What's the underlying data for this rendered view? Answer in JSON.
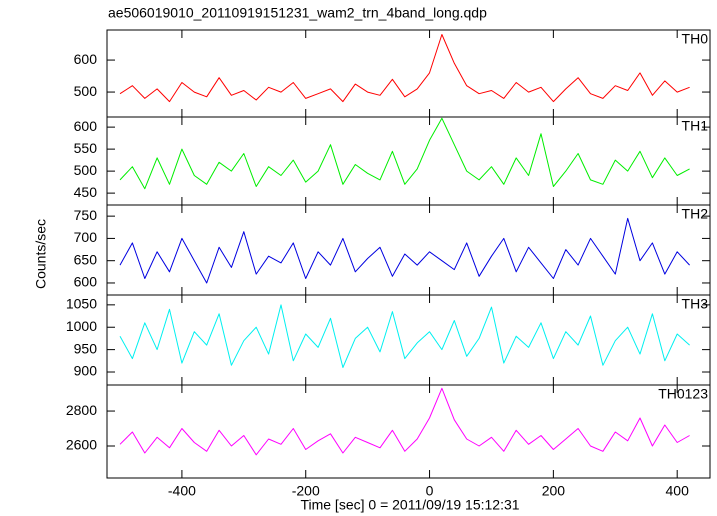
{
  "chart_data": {
    "type": "line",
    "title": "ae506019010_20110919151231_wam2_trn_4band_long.qdp",
    "x_label": "Time [sec] 0 = 2011/09/19 15:12:31",
    "y_label": "Counts/sec",
    "x": [
      -500,
      -480,
      -460,
      -440,
      -420,
      -400,
      -380,
      -360,
      -340,
      -320,
      -300,
      -280,
      -260,
      -240,
      -220,
      -200,
      -180,
      -160,
      -140,
      -120,
      -100,
      -80,
      -60,
      -40,
      -20,
      0,
      20,
      40,
      60,
      80,
      100,
      120,
      140,
      160,
      180,
      200,
      220,
      240,
      260,
      280,
      300,
      320,
      340,
      360,
      380,
      400,
      420
    ],
    "xlim": [
      -521,
      453
    ],
    "xticks": [
      -400,
      -200,
      0,
      200,
      400
    ],
    "panels": [
      {
        "label": "TH0",
        "color": "#ff0000",
        "ylim": [
          422,
          694
        ],
        "yticks": [
          500,
          600
        ],
        "values": [
          495,
          520,
          480,
          510,
          470,
          530,
          500,
          485,
          545,
          490,
          505,
          475,
          515,
          500,
          530,
          480,
          495,
          510,
          470,
          525,
          500,
          490,
          540,
          485,
          510,
          560,
          680,
          590,
          520,
          495,
          505,
          480,
          530,
          500,
          515,
          470,
          510,
          545,
          495,
          480,
          520,
          505,
          560,
          490,
          535,
          500,
          515
        ]
      },
      {
        "label": "TH1",
        "color": "#00ee00",
        "ylim": [
          423,
          623
        ],
        "yticks": [
          450,
          500,
          550,
          600
        ],
        "values": [
          480,
          510,
          460,
          530,
          470,
          550,
          490,
          470,
          520,
          500,
          540,
          465,
          510,
          490,
          525,
          475,
          500,
          560,
          470,
          515,
          495,
          480,
          545,
          470,
          505,
          570,
          620,
          560,
          500,
          480,
          510,
          470,
          530,
          490,
          585,
          465,
          500,
          540,
          480,
          470,
          525,
          500,
          545,
          485,
          530,
          490,
          505
        ]
      },
      {
        "label": "TH2",
        "color": "#0000e0",
        "ylim": [
          573,
          775
        ],
        "yticks": [
          600,
          650,
          700,
          750
        ],
        "values": [
          640,
          690,
          610,
          670,
          625,
          700,
          650,
          600,
          680,
          635,
          715,
          620,
          660,
          645,
          690,
          610,
          670,
          640,
          700,
          625,
          655,
          680,
          615,
          665,
          640,
          670,
          650,
          630,
          690,
          615,
          660,
          700,
          625,
          680,
          645,
          610,
          675,
          640,
          700,
          660,
          620,
          745,
          650,
          690,
          620,
          670,
          640
        ]
      },
      {
        "label": "TH3",
        "color": "#00f0f0",
        "ylim": [
          871,
          1072
        ],
        "yticks": [
          900,
          950,
          1000,
          1050
        ],
        "values": [
          980,
          930,
          1010,
          950,
          1040,
          920,
          990,
          960,
          1030,
          915,
          970,
          1000,
          940,
          1050,
          925,
          985,
          955,
          1020,
          910,
          975,
          1000,
          945,
          1035,
          930,
          965,
          990,
          950,
          1015,
          935,
          975,
          1045,
          920,
          980,
          955,
          1010,
          930,
          990,
          960,
          1025,
          915,
          970,
          1000,
          940,
          1030,
          925,
          985,
          960
        ]
      },
      {
        "label": "TH0123",
        "color": "#ff00ff",
        "ylim": [
          2417,
          2949
        ],
        "yticks": [
          2600,
          2800
        ],
        "values": [
          2610,
          2680,
          2560,
          2650,
          2590,
          2700,
          2620,
          2570,
          2690,
          2600,
          2660,
          2550,
          2640,
          2610,
          2700,
          2580,
          2630,
          2670,
          2560,
          2650,
          2620,
          2590,
          2690,
          2570,
          2640,
          2760,
          2930,
          2750,
          2640,
          2600,
          2650,
          2570,
          2690,
          2610,
          2660,
          2580,
          2640,
          2700,
          2600,
          2570,
          2680,
          2630,
          2760,
          2600,
          2720,
          2620,
          2660
        ]
      }
    ]
  }
}
